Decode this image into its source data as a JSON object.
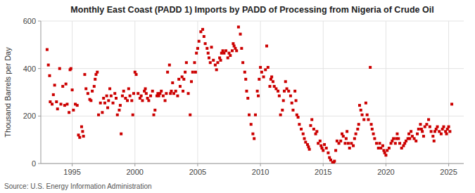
{
  "chart_data": {
    "type": "scatter",
    "title": "Monthly East Coast (PADD 1) Imports by PADD of Processing from Nigeria of Crude Oil",
    "y_label": "Thousand Barrels per Day",
    "annotations": [
      "Source: U.S. Energy Information Administration"
    ],
    "color": "#cc0000",
    "marker": "square",
    "grid": true,
    "xlim": [
      1992.5,
      2026.2
    ],
    "xticks": [
      1995,
      2000,
      2005,
      2010,
      2015,
      2020,
      2025
    ],
    "ylim": [
      0,
      600
    ],
    "yticks": [
      0,
      200,
      400,
      600
    ],
    "x": [
      1993.0,
      1993.1,
      1993.2,
      1993.25,
      1993.4,
      1993.5,
      1993.6,
      1993.75,
      1993.83,
      1994.0,
      1994.1,
      1994.25,
      1994.4,
      1994.5,
      1994.6,
      1994.75,
      1994.83,
      1994.9,
      1995.0,
      1995.1,
      1995.25,
      1995.4,
      1995.5,
      1995.6,
      1995.75,
      1995.83,
      1995.9,
      1996.0,
      1996.1,
      1996.25,
      1996.4,
      1996.5,
      1996.6,
      1996.75,
      1996.83,
      1996.9,
      1997.0,
      1997.1,
      1997.25,
      1997.4,
      1997.5,
      1997.6,
      1997.75,
      1997.83,
      1997.9,
      1998.0,
      1998.1,
      1998.25,
      1998.4,
      1998.5,
      1998.6,
      1998.75,
      1998.83,
      1998.9,
      1999.0,
      1999.1,
      1999.25,
      1999.4,
      1999.5,
      1999.6,
      1999.75,
      1999.83,
      1999.9,
      2000.0,
      2000.1,
      2000.25,
      2000.4,
      2000.5,
      2000.6,
      2000.75,
      2000.83,
      2000.9,
      2001.0,
      2001.1,
      2001.25,
      2001.4,
      2001.5,
      2001.6,
      2001.75,
      2001.83,
      2001.9,
      2002.0,
      2002.1,
      2002.25,
      2002.4,
      2002.5,
      2002.6,
      2002.75,
      2002.83,
      2002.9,
      2003.0,
      2003.1,
      2003.25,
      2003.4,
      2003.5,
      2003.6,
      2003.75,
      2003.83,
      2003.9,
      2004.0,
      2004.1,
      2004.25,
      2004.4,
      2004.5,
      2004.6,
      2004.75,
      2004.83,
      2004.9,
      2005.0,
      2005.1,
      2005.25,
      2005.4,
      2005.5,
      2005.6,
      2005.75,
      2005.83,
      2005.9,
      2006.0,
      2006.1,
      2006.25,
      2006.4,
      2006.5,
      2006.6,
      2006.75,
      2006.83,
      2006.9,
      2007.0,
      2007.1,
      2007.25,
      2007.4,
      2007.5,
      2007.6,
      2007.75,
      2007.83,
      2007.9,
      2008.0,
      2008.1,
      2008.25,
      2008.4,
      2008.5,
      2008.6,
      2008.75,
      2008.83,
      2008.9,
      2009.0,
      2009.1,
      2009.25,
      2009.4,
      2009.5,
      2009.6,
      2009.75,
      2009.83,
      2009.9,
      2010.0,
      2010.1,
      2010.25,
      2010.4,
      2010.5,
      2010.6,
      2010.75,
      2010.83,
      2010.9,
      2011.0,
      2011.1,
      2011.25,
      2011.4,
      2011.5,
      2011.6,
      2011.75,
      2011.83,
      2011.9,
      2012.0,
      2012.1,
      2012.25,
      2012.4,
      2012.5,
      2012.6,
      2012.75,
      2012.83,
      2012.9,
      2013.0,
      2013.1,
      2013.25,
      2013.4,
      2013.5,
      2013.6,
      2013.75,
      2013.83,
      2013.9,
      2014.0,
      2014.1,
      2014.25,
      2014.4,
      2014.5,
      2014.6,
      2014.75,
      2014.83,
      2014.9,
      2015.0,
      2015.1,
      2015.25,
      2015.4,
      2015.5,
      2015.6,
      2015.75,
      2015.83,
      2015.9,
      2016.0,
      2016.1,
      2016.25,
      2016.4,
      2016.5,
      2016.6,
      2016.75,
      2016.83,
      2016.9,
      2017.0,
      2017.1,
      2017.25,
      2017.4,
      2017.5,
      2017.6,
      2017.75,
      2017.83,
      2017.9,
      2018.0,
      2018.1,
      2018.25,
      2018.4,
      2018.5,
      2018.6,
      2018.75,
      2018.83,
      2018.9,
      2019.0,
      2019.1,
      2019.25,
      2019.4,
      2019.5,
      2019.6,
      2019.75,
      2019.83,
      2019.9,
      2020.0,
      2020.1,
      2020.25,
      2020.4,
      2020.5,
      2020.6,
      2020.75,
      2020.83,
      2020.9,
      2021.0,
      2021.1,
      2021.25,
      2021.4,
      2021.5,
      2021.6,
      2021.75,
      2021.83,
      2021.9,
      2022.0,
      2022.1,
      2022.25,
      2022.4,
      2022.5,
      2022.6,
      2022.75,
      2022.83,
      2022.9,
      2023.0,
      2023.1,
      2023.25,
      2023.4,
      2023.5,
      2023.6,
      2023.75,
      2023.83,
      2023.9,
      2024.0,
      2024.1,
      2024.25,
      2024.4,
      2024.5,
      2024.6,
      2024.75,
      2024.83,
      2024.9,
      2025.0,
      2025.1,
      2025.25
    ],
    "values": [
      480,
      415,
      370,
      260,
      250,
      290,
      330,
      260,
      230,
      400,
      250,
      325,
      245,
      335,
      250,
      215,
      395,
      400,
      310,
      225,
      250,
      245,
      120,
      110,
      155,
      135,
      115,
      375,
      315,
      295,
      270,
      265,
      305,
      325,
      355,
      375,
      385,
      205,
      255,
      215,
      275,
      255,
      285,
      235,
      265,
      315,
      285,
      255,
      295,
      275,
      205,
      225,
      245,
      125,
      285,
      305,
      275,
      265,
      315,
      285,
      265,
      205,
      295,
      385,
      375,
      295,
      275,
      285,
      265,
      305,
      315,
      295,
      275,
      265,
      285,
      305,
      205,
      225,
      285,
      295,
      285,
      295,
      305,
      285,
      265,
      295,
      385,
      415,
      295,
      305,
      340,
      295,
      305,
      285,
      355,
      325,
      365,
      305,
      355,
      385,
      425,
      295,
      205,
      345,
      385,
      425,
      385,
      465,
      485,
      515,
      555,
      565,
      535,
      505,
      485,
      465,
      445,
      425,
      490,
      435,
      415,
      395,
      425,
      445,
      435,
      465,
      475,
      465,
      475,
      445,
      465,
      455,
      475,
      505,
      495,
      485,
      475,
      575,
      545,
      485,
      425,
      385,
      355,
      305,
      275,
      205,
      165,
      125,
      105,
      205,
      305,
      285,
      355,
      405,
      385,
      365,
      395,
      495,
      405,
      325,
      355,
      365,
      345,
      325,
      315,
      305,
      285,
      205,
      225,
      265,
      305,
      345,
      315,
      305,
      285,
      255,
      225,
      305,
      265,
      205,
      195,
      165,
      145,
      125,
      105,
      90,
      80,
      70,
      60,
      160,
      185,
      145,
      125,
      135,
      85,
      95,
      75,
      65,
      55,
      80,
      65,
      45,
      25,
      15,
      5,
      2,
      10,
      55,
      95,
      85,
      95,
      125,
      115,
      85,
      105,
      135,
      85,
      65,
      85,
      75,
      105,
      125,
      145,
      165,
      245,
      225,
      205,
      185,
      255,
      205,
      185,
      405,
      165,
      145,
      125,
      105,
      85,
      65,
      85,
      65,
      75,
      55,
      45,
      35,
      55,
      65,
      85,
      95,
      105,
      85,
      105,
      125,
      105,
      85,
      65,
      75,
      85,
      95,
      105,
      125,
      105,
      135,
      115,
      105,
      95,
      125,
      145,
      165,
      145,
      135,
      115,
      155,
      165,
      185,
      155,
      135,
      115,
      95,
      135,
      145,
      155,
      135,
      125,
      145,
      155,
      135,
      125,
      145,
      155,
      135,
      250
    ]
  }
}
